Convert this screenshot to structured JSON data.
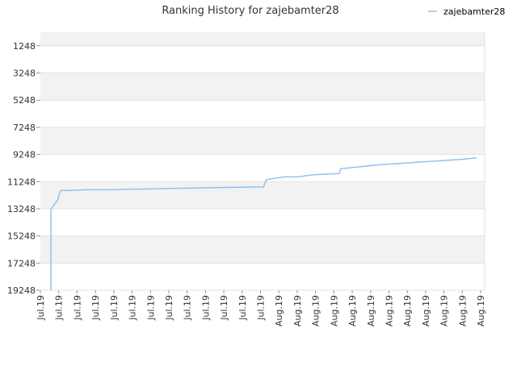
{
  "chart_data": {
    "type": "line",
    "title": "Ranking History for zajebamter28",
    "xlabel": "",
    "ylabel": "",
    "y_inverted": true,
    "ylim": [
      19248,
      248
    ],
    "y_ticks": [
      1248,
      3248,
      5248,
      7248,
      9248,
      11248,
      13248,
      15248,
      17248,
      19248
    ],
    "x_ticks": [
      "Jul.19",
      "Jul.19",
      "Jul.19",
      "Jul.19",
      "Jul.19",
      "Jul.19",
      "Jul.19",
      "Jul.19",
      "Jul.19",
      "Jul.19",
      "Jul.19",
      "Jul.19",
      "Jul.19",
      "Aug.19",
      "Aug.19",
      "Aug.19",
      "Aug.19",
      "Aug.19",
      "Aug.19",
      "Aug.19",
      "Aug.19",
      "Aug.19",
      "Aug.19",
      "Aug.19",
      "Aug.19"
    ],
    "grid": true,
    "legend": "top-right",
    "colors": {
      "series": "#90c2ee",
      "band": "#f2f2f2",
      "grid": "#e3e3e3"
    },
    "series": [
      {
        "name": "zajebamter28",
        "points": [
          [
            0.0,
            19248
          ],
          [
            0.0,
            13300
          ],
          [
            0.2,
            13000
          ],
          [
            0.5,
            12600
          ],
          [
            0.6,
            12200
          ],
          [
            0.7,
            11900
          ],
          [
            1.5,
            11900
          ],
          [
            2.5,
            11850
          ],
          [
            3.5,
            11850
          ],
          [
            4.5,
            11850
          ],
          [
            5.5,
            11800
          ],
          [
            6.5,
            11800
          ],
          [
            8.5,
            11750
          ],
          [
            11.5,
            11700
          ],
          [
            14.5,
            11650
          ],
          [
            15.5,
            11650
          ],
          [
            15.6,
            11300
          ],
          [
            15.7,
            11100
          ],
          [
            17.0,
            10900
          ],
          [
            18.0,
            10900
          ],
          [
            19.0,
            10750
          ],
          [
            20.0,
            10700
          ],
          [
            21.0,
            10650
          ],
          [
            21.1,
            10300
          ],
          [
            23.0,
            10100
          ],
          [
            24.0,
            10000
          ],
          [
            25.5,
            9900
          ],
          [
            27.0,
            9800
          ],
          [
            28.5,
            9700
          ],
          [
            30.0,
            9600
          ],
          [
            31.0,
            9500
          ]
        ]
      }
    ]
  }
}
